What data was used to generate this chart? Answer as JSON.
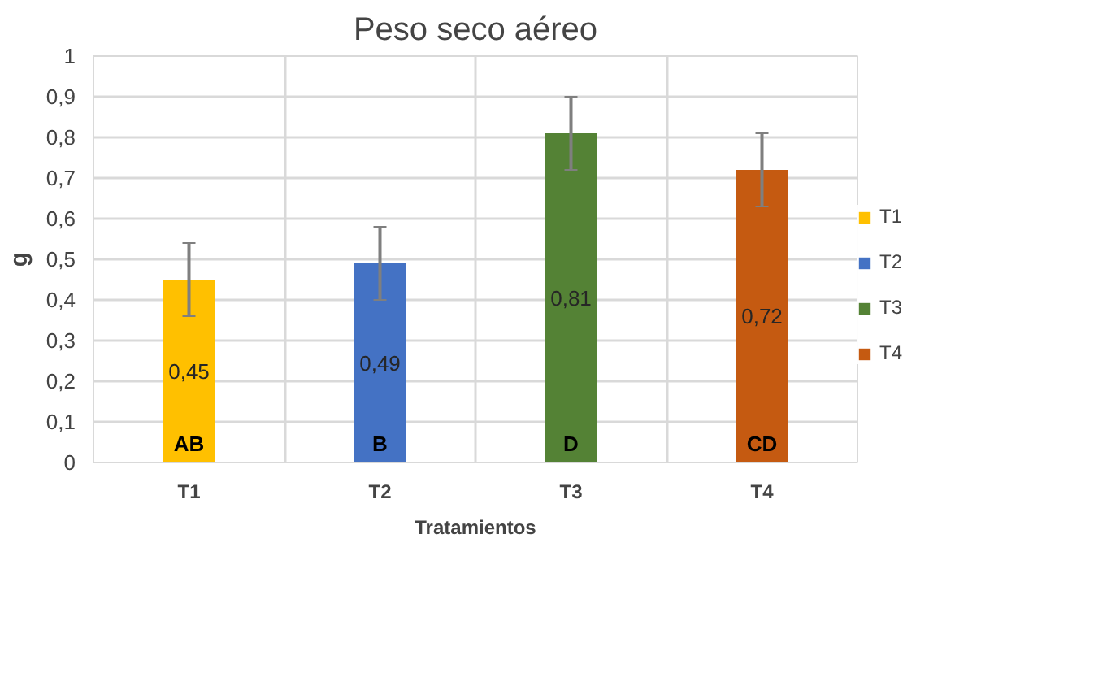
{
  "chart_data": {
    "type": "bar",
    "title": "Peso seco aéreo",
    "xlabel": "Tratamientos",
    "ylabel": "g",
    "categories": [
      "T1",
      "T2",
      "T3",
      "T4"
    ],
    "series": [
      {
        "name": "T1",
        "color": "#ffc000",
        "values": [
          0.45,
          null,
          null,
          null
        ],
        "errors": [
          0.09,
          null,
          null,
          null
        ],
        "value_labels": [
          "0,45",
          null,
          null,
          null
        ]
      },
      {
        "name": "T2",
        "color": "#4472c4",
        "values": [
          null,
          0.49,
          null,
          null
        ],
        "errors": [
          null,
          0.09,
          null,
          null
        ],
        "value_labels": [
          null,
          "0,49",
          null,
          null
        ]
      },
      {
        "name": "T3",
        "color": "#548235",
        "values": [
          null,
          null,
          0.81,
          null
        ],
        "errors": [
          null,
          null,
          0.09,
          null
        ],
        "value_labels": [
          null,
          null,
          "0,81",
          null
        ]
      },
      {
        "name": "T4",
        "color": "#c55a11",
        "values": [
          null,
          null,
          null,
          0.72
        ],
        "errors": [
          null,
          null,
          null,
          0.09
        ],
        "value_labels": [
          null,
          null,
          null,
          "0,72"
        ]
      }
    ],
    "stacked": true,
    "ylim": [
      0,
      1
    ],
    "yticks": [
      0,
      {
        "value": 0.1,
        "label": "0,1"
      },
      {
        "value": 0.2,
        "label": "0,2"
      },
      {
        "value": 0.3,
        "label": "0,3"
      },
      {
        "value": 0.4,
        "label": "0,4"
      },
      {
        "value": 0.5,
        "label": "0,5"
      },
      {
        "value": 0.6,
        "label": "0,6"
      },
      {
        "value": 0.7,
        "label": "0,7"
      },
      {
        "value": 0.8,
        "label": "0,8"
      },
      {
        "value": 0.9,
        "label": "0,9"
      },
      1
    ],
    "annotations": [
      {
        "text": "AB",
        "x": "T1",
        "y": 0
      },
      {
        "text": "B",
        "x": "T2",
        "y": 0
      },
      {
        "text": "D",
        "x": "T3",
        "y": 0
      },
      {
        "text": "CD",
        "x": "T4",
        "y": 0
      }
    ],
    "grid": true,
    "legend": "right"
  }
}
